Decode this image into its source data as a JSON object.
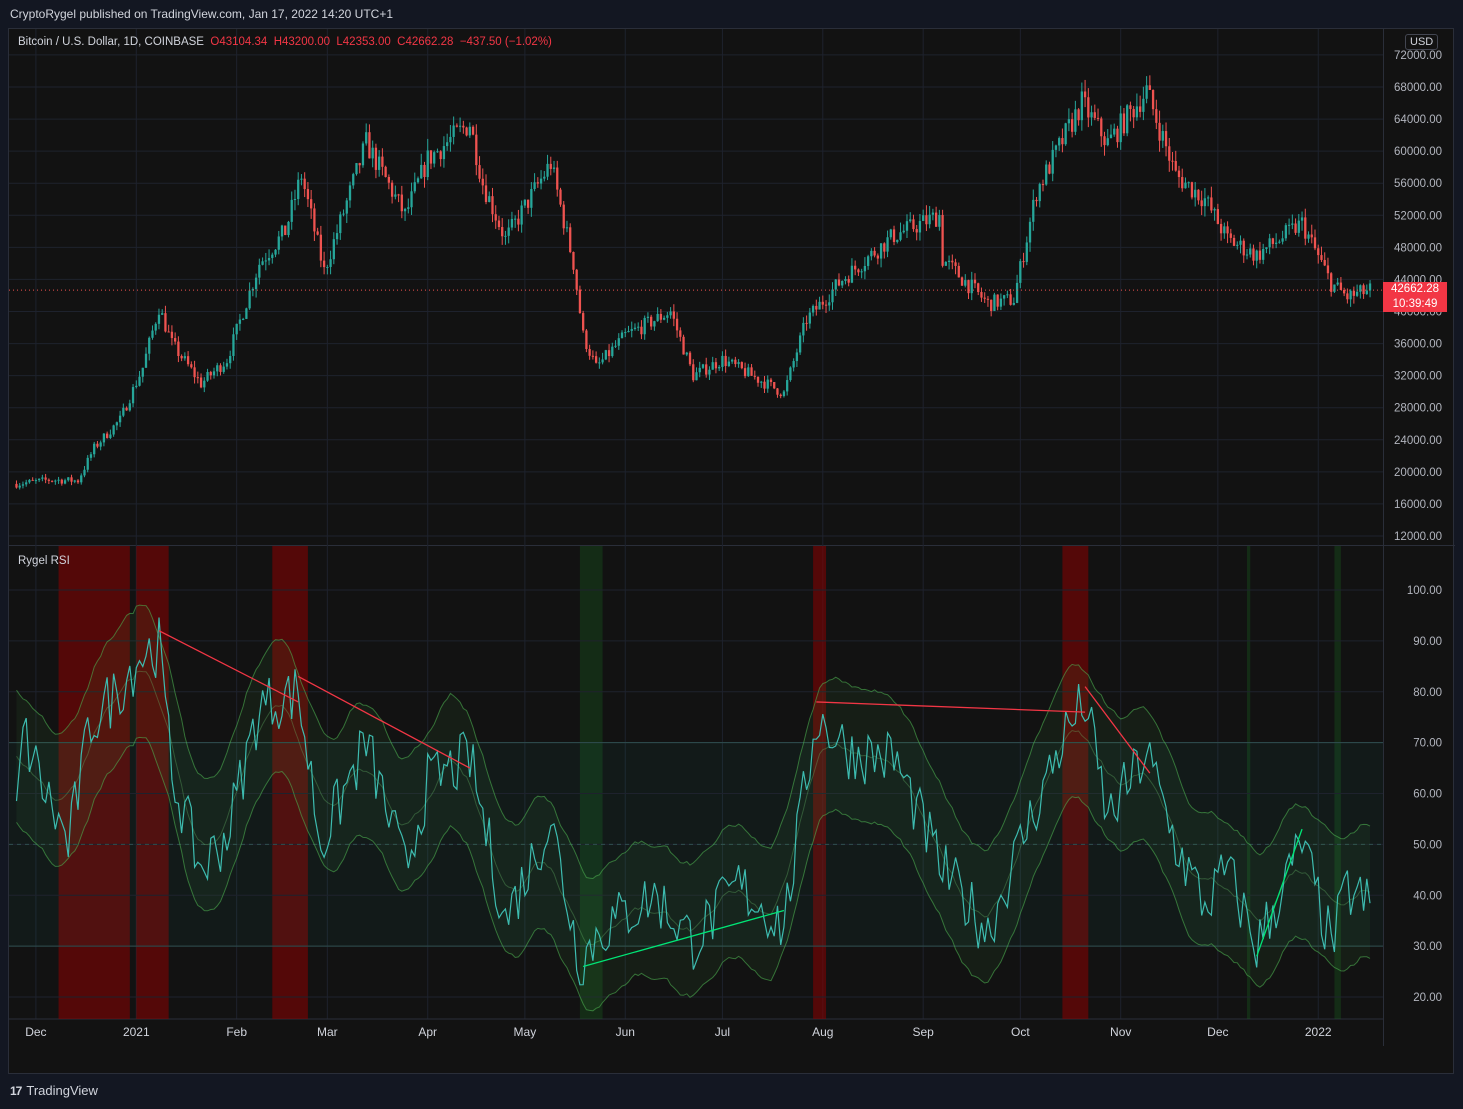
{
  "header": {
    "published": "CryptoRygel published on TradingView.com, Jan 17, 2022 14:20 UTC+1"
  },
  "legend": {
    "symbol": "Bitcoin / U.S. Dollar, 1D, COINBASE",
    "open_label": "O",
    "open": "43104.34",
    "high_label": "H",
    "high": "43200.00",
    "low_label": "L",
    "low": "42353.00",
    "close_label": "C",
    "close": "42662.28",
    "change": "−437.50 (−1.02%)"
  },
  "currency": "USD",
  "price_tag": {
    "price": "42662.28",
    "countdown": "10:39:49"
  },
  "indicator": {
    "name": "Rygel RSI"
  },
  "footer": {
    "brand": "TradingView",
    "brand_mark": "17"
  },
  "colors": {
    "up": "#26a69a",
    "down": "#ef5350",
    "rsi_line": "#3dbcb0",
    "band": "#4caf50",
    "bull_div": "#00e676",
    "bear_div": "#f23645",
    "overbought_zone": "#8b0000",
    "oversold_zone": "#1b5e20"
  },
  "chart_data": [
    {
      "type": "candlestick",
      "title": "Bitcoin / U.S. Dollar, 1D, COINBASE",
      "price_axis_ticks": [
        "72000.00",
        "68000.00",
        "64000.00",
        "60000.00",
        "56000.00",
        "52000.00",
        "48000.00",
        "44000.00",
        "40000.00",
        "36000.00",
        "32000.00",
        "28000.00",
        "24000.00",
        "20000.00",
        "16000.00",
        "12000.00"
      ],
      "ylim": [
        12000,
        72000
      ],
      "last_price": 42662.28,
      "grid": true,
      "close_path": [
        {
          "date": "2020-11-25",
          "close": 18500
        },
        {
          "date": "2020-12-05",
          "close": 19000
        },
        {
          "date": "2020-12-14",
          "close": 18900
        },
        {
          "date": "2020-12-19",
          "close": 23000
        },
        {
          "date": "2020-12-27",
          "close": 26500
        },
        {
          "date": "2021-01-03",
          "close": 33000
        },
        {
          "date": "2021-01-08",
          "close": 40500
        },
        {
          "date": "2021-01-12",
          "close": 36000
        },
        {
          "date": "2021-01-21",
          "close": 31000
        },
        {
          "date": "2021-01-29",
          "close": 34000
        },
        {
          "date": "2021-02-08",
          "close": 46000
        },
        {
          "date": "2021-02-16",
          "close": 50000
        },
        {
          "date": "2021-02-21",
          "close": 57000
        },
        {
          "date": "2021-02-28",
          "close": 45000
        },
        {
          "date": "2021-03-13",
          "close": 61000
        },
        {
          "date": "2021-03-25",
          "close": 52000
        },
        {
          "date": "2021-04-01",
          "close": 59000
        },
        {
          "date": "2021-04-14",
          "close": 63500
        },
        {
          "date": "2021-04-18",
          "close": 56000
        },
        {
          "date": "2021-04-25",
          "close": 49000
        },
        {
          "date": "2021-05-09",
          "close": 58500
        },
        {
          "date": "2021-05-16",
          "close": 46000
        },
        {
          "date": "2021-05-19",
          "close": 37000
        },
        {
          "date": "2021-05-23",
          "close": 33000
        },
        {
          "date": "2021-06-01",
          "close": 37000
        },
        {
          "date": "2021-06-15",
          "close": 40000
        },
        {
          "date": "2021-06-22",
          "close": 32000
        },
        {
          "date": "2021-07-01",
          "close": 34000
        },
        {
          "date": "2021-07-20",
          "close": 29800
        },
        {
          "date": "2021-07-27",
          "close": 39000
        },
        {
          "date": "2021-08-07",
          "close": 44000
        },
        {
          "date": "2021-08-23",
          "close": 49500
        },
        {
          "date": "2021-09-06",
          "close": 52000
        },
        {
          "date": "2021-09-07",
          "close": 46500
        },
        {
          "date": "2021-09-21",
          "close": 41000
        },
        {
          "date": "2021-09-29",
          "close": 41500
        },
        {
          "date": "2021-10-06",
          "close": 55000
        },
        {
          "date": "2021-10-20",
          "close": 66000
        },
        {
          "date": "2021-10-28",
          "close": 61000
        },
        {
          "date": "2021-11-09",
          "close": 67500
        },
        {
          "date": "2021-11-18",
          "close": 57000
        },
        {
          "date": "2021-11-27",
          "close": 54000
        },
        {
          "date": "2021-12-04",
          "close": 49000
        },
        {
          "date": "2021-12-13",
          "close": 47000
        },
        {
          "date": "2021-12-27",
          "close": 51000
        },
        {
          "date": "2022-01-05",
          "close": 43500
        },
        {
          "date": "2022-01-10",
          "close": 41800
        },
        {
          "date": "2022-01-17",
          "close": 42662
        }
      ]
    },
    {
      "type": "line",
      "title": "Rygel RSI",
      "rsi_axis_ticks": [
        "100.00",
        "90.00",
        "80.00",
        "70.00",
        "60.00",
        "50.00",
        "40.00",
        "30.00",
        "20.00"
      ],
      "ylim": [
        10,
        108
      ],
      "zone_lines": [
        30,
        50,
        70
      ],
      "x_tick_labels": [
        "Dec",
        "2021",
        "Feb",
        "Mar",
        "Apr",
        "May",
        "Jun",
        "Jul",
        "Aug",
        "Sep",
        "Oct",
        "Nov",
        "Dec",
        "2022"
      ],
      "x_tick_dates": [
        "2020-12-01",
        "2021-01-01",
        "2021-02-01",
        "2021-03-01",
        "2021-04-01",
        "2021-05-01",
        "2021-06-01",
        "2021-07-01",
        "2021-08-01",
        "2021-09-01",
        "2021-10-01",
        "2021-11-01",
        "2021-12-01",
        "2022-01-01"
      ],
      "rsi_path": [
        {
          "date": "2020-11-25",
          "rsi": 55
        },
        {
          "date": "2020-11-27",
          "rsi": 72
        },
        {
          "date": "2020-12-04",
          "rsi": 60
        },
        {
          "date": "2020-12-11",
          "rsi": 50
        },
        {
          "date": "2020-12-18",
          "rsi": 74
        },
        {
          "date": "2020-12-26",
          "rsi": 80
        },
        {
          "date": "2021-01-02",
          "rsi": 87
        },
        {
          "date": "2021-01-08",
          "rsi": 89
        },
        {
          "date": "2021-01-12",
          "rsi": 64
        },
        {
          "date": "2021-01-21",
          "rsi": 45
        },
        {
          "date": "2021-01-29",
          "rsi": 52
        },
        {
          "date": "2021-02-08",
          "rsi": 77
        },
        {
          "date": "2021-02-20",
          "rsi": 80
        },
        {
          "date": "2021-02-27",
          "rsi": 50
        },
        {
          "date": "2021-03-13",
          "rsi": 70
        },
        {
          "date": "2021-03-25",
          "rsi": 45
        },
        {
          "date": "2021-04-01",
          "rsi": 62
        },
        {
          "date": "2021-04-14",
          "rsi": 67
        },
        {
          "date": "2021-04-25",
          "rsi": 35
        },
        {
          "date": "2021-05-09",
          "rsi": 55
        },
        {
          "date": "2021-05-18",
          "rsi": 27
        },
        {
          "date": "2021-05-24",
          "rsi": 33
        },
        {
          "date": "2021-06-10",
          "rsi": 40
        },
        {
          "date": "2021-06-22",
          "rsi": 31
        },
        {
          "date": "2021-07-06",
          "rsi": 42
        },
        {
          "date": "2021-07-20",
          "rsi": 34
        },
        {
          "date": "2021-07-30",
          "rsi": 75
        },
        {
          "date": "2021-08-10",
          "rsi": 68
        },
        {
          "date": "2021-08-23",
          "rsi": 67
        },
        {
          "date": "2021-09-07",
          "rsi": 45
        },
        {
          "date": "2021-09-21",
          "rsi": 33
        },
        {
          "date": "2021-10-01",
          "rsi": 50
        },
        {
          "date": "2021-10-15",
          "rsi": 72
        },
        {
          "date": "2021-10-21",
          "rsi": 78
        },
        {
          "date": "2021-10-28",
          "rsi": 55
        },
        {
          "date": "2021-11-09",
          "rsi": 68
        },
        {
          "date": "2021-11-18",
          "rsi": 50
        },
        {
          "date": "2021-11-27",
          "rsi": 38
        },
        {
          "date": "2021-12-04",
          "rsi": 45
        },
        {
          "date": "2021-12-13",
          "rsi": 30
        },
        {
          "date": "2021-12-27",
          "rsi": 50
        },
        {
          "date": "2022-01-05",
          "rsi": 30
        },
        {
          "date": "2022-01-10",
          "rsi": 41
        },
        {
          "date": "2022-01-17",
          "rsi": 38
        }
      ],
      "bearish_divergences": [
        {
          "from": "2021-01-08",
          "to": "2021-02-20"
        },
        {
          "from": "2021-02-20",
          "to": "2021-04-14"
        },
        {
          "from": "2021-07-30",
          "to": "2021-10-21"
        },
        {
          "from": "2021-10-21",
          "to": "2021-11-10"
        }
      ],
      "bullish_divergences": [
        {
          "from": "2021-05-19",
          "to": "2021-07-20"
        },
        {
          "from": "2021-12-13",
          "to": "2021-12-27"
        }
      ]
    }
  ]
}
